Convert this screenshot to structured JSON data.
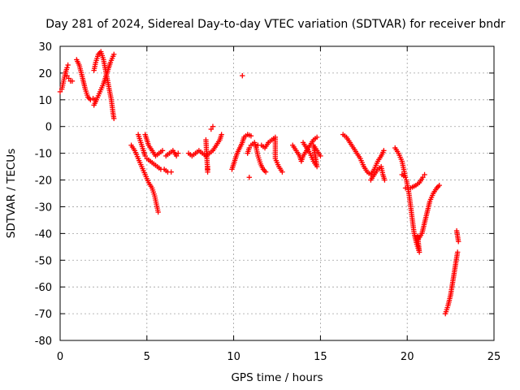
{
  "chart_data": {
    "type": "scatter",
    "title": "Day 281 of 2024, Sidereal Day-to-day VTEC variation (SDTVAR) for receiver bndr",
    "xlabel": "GPS time / hours",
    "ylabel": "SDTVAR / TECUs",
    "xlim": [
      0,
      25
    ],
    "ylim": [
      -80,
      30
    ],
    "xticks": [
      0,
      5,
      10,
      15,
      20,
      25
    ],
    "yticks": [
      -80,
      -70,
      -60,
      -50,
      -40,
      -30,
      -20,
      -10,
      0,
      10,
      20,
      30
    ],
    "grid": true,
    "marker": "plus",
    "color": "#ff0000",
    "segments": [
      [
        [
          0.0,
          13
        ],
        [
          0.1,
          14
        ],
        [
          0.2,
          17
        ],
        [
          0.3,
          20
        ],
        [
          0.4,
          22
        ],
        [
          0.45,
          23
        ]
      ],
      [
        [
          0.4,
          19
        ],
        [
          0.5,
          18
        ],
        [
          0.6,
          17
        ],
        [
          0.7,
          17
        ]
      ],
      [
        [
          0.95,
          25
        ],
        [
          1.1,
          23
        ],
        [
          1.3,
          18
        ],
        [
          1.45,
          14
        ],
        [
          1.6,
          11
        ],
        [
          1.75,
          10
        ],
        [
          1.9,
          10.5
        ],
        [
          2.0,
          10
        ]
      ],
      [
        [
          1.95,
          8
        ],
        [
          2.1,
          10
        ],
        [
          2.3,
          13
        ],
        [
          2.5,
          16
        ],
        [
          2.7,
          20
        ],
        [
          2.9,
          24
        ],
        [
          3.1,
          27
        ]
      ],
      [
        [
          1.95,
          21
        ],
        [
          2.05,
          24
        ],
        [
          2.2,
          27
        ],
        [
          2.35,
          28
        ],
        [
          2.5,
          25
        ],
        [
          2.65,
          20
        ],
        [
          2.8,
          15
        ],
        [
          2.95,
          10
        ],
        [
          3.05,
          5
        ],
        [
          3.1,
          3
        ]
      ],
      [
        [
          4.1,
          -7
        ],
        [
          4.3,
          -9
        ],
        [
          4.5,
          -12
        ],
        [
          4.7,
          -15
        ],
        [
          4.9,
          -18
        ],
        [
          5.1,
          -21
        ],
        [
          5.3,
          -23
        ],
        [
          5.45,
          -26
        ],
        [
          5.55,
          -29
        ],
        [
          5.65,
          -32
        ]
      ],
      [
        [
          4.5,
          -3
        ],
        [
          4.65,
          -6
        ],
        [
          4.8,
          -9
        ],
        [
          4.9,
          -11
        ],
        [
          5.0,
          -12
        ],
        [
          5.2,
          -13
        ],
        [
          5.4,
          -14
        ],
        [
          5.6,
          -15
        ],
        [
          5.8,
          -16
        ],
        [
          6.0,
          -16
        ],
        [
          6.2,
          -17
        ],
        [
          6.4,
          -17
        ]
      ],
      [
        [
          4.9,
          -3
        ],
        [
          5.0,
          -5
        ],
        [
          5.1,
          -7
        ],
        [
          5.3,
          -9
        ],
        [
          5.5,
          -11
        ],
        [
          5.7,
          -10
        ],
        [
          5.9,
          -9
        ]
      ],
      [
        [
          6.1,
          -11
        ],
        [
          6.3,
          -10
        ],
        [
          6.5,
          -9
        ],
        [
          6.7,
          -11
        ],
        [
          6.8,
          -10
        ]
      ],
      [
        [
          7.4,
          -10
        ],
        [
          7.6,
          -11
        ],
        [
          7.8,
          -10
        ],
        [
          8.0,
          -9
        ],
        [
          8.2,
          -10
        ],
        [
          8.4,
          -11
        ],
        [
          8.6,
          -10
        ],
        [
          8.8,
          -9
        ],
        [
          9.0,
          -7
        ],
        [
          9.2,
          -5
        ],
        [
          9.3,
          -3
        ]
      ],
      [
        [
          8.7,
          -1
        ],
        [
          8.8,
          0
        ],
        [
          8.5,
          -15
        ],
        [
          8.5,
          -17
        ],
        [
          8.4,
          -5
        ]
      ],
      [
        [
          9.9,
          -16
        ],
        [
          10.0,
          -14
        ],
        [
          10.1,
          -12
        ],
        [
          10.2,
          -10
        ],
        [
          10.35,
          -8
        ],
        [
          10.5,
          -6
        ],
        [
          10.6,
          -4
        ],
        [
          10.8,
          -3
        ],
        [
          11.0,
          -3.5
        ]
      ],
      [
        [
          10.8,
          -10
        ],
        [
          10.9,
          -8
        ],
        [
          11.0,
          -7
        ],
        [
          11.2,
          -6
        ],
        [
          11.3,
          -8
        ],
        [
          11.4,
          -11
        ],
        [
          11.55,
          -14
        ],
        [
          11.7,
          -16
        ],
        [
          11.85,
          -17
        ]
      ],
      [
        [
          11.4,
          -7
        ],
        [
          11.6,
          -7
        ],
        [
          11.8,
          -8
        ],
        [
          12.0,
          -6
        ],
        [
          12.2,
          -5
        ],
        [
          12.4,
          -4
        ],
        [
          12.4,
          -12
        ],
        [
          12.6,
          -15
        ],
        [
          12.8,
          -17
        ]
      ],
      [
        [
          10.5,
          19
        ],
        [
          10.9,
          -19
        ]
      ],
      [
        [
          13.4,
          -7
        ],
        [
          13.6,
          -9
        ],
        [
          13.8,
          -11
        ],
        [
          13.9,
          -13
        ],
        [
          14.0,
          -11
        ],
        [
          14.2,
          -9
        ],
        [
          14.4,
          -7
        ],
        [
          14.6,
          -5
        ],
        [
          14.8,
          -4
        ]
      ],
      [
        [
          14.0,
          -6
        ],
        [
          14.2,
          -8
        ],
        [
          14.4,
          -10
        ],
        [
          14.6,
          -13
        ],
        [
          14.8,
          -15
        ],
        [
          14.6,
          -7
        ],
        [
          14.8,
          -9
        ],
        [
          15.0,
          -11
        ]
      ],
      [
        [
          16.3,
          -3
        ],
        [
          16.5,
          -4
        ],
        [
          16.7,
          -6
        ],
        [
          16.9,
          -8
        ],
        [
          17.1,
          -10
        ],
        [
          17.3,
          -12
        ],
        [
          17.5,
          -15
        ],
        [
          17.7,
          -17
        ],
        [
          17.9,
          -18
        ],
        [
          18.1,
          -16
        ],
        [
          18.3,
          -13
        ],
        [
          18.5,
          -11
        ],
        [
          18.65,
          -9
        ]
      ],
      [
        [
          17.9,
          -20
        ],
        [
          18.1,
          -18
        ],
        [
          18.3,
          -16
        ],
        [
          18.5,
          -15
        ],
        [
          18.6,
          -18
        ],
        [
          18.7,
          -20
        ]
      ],
      [
        [
          19.3,
          -8
        ],
        [
          19.5,
          -10
        ],
        [
          19.7,
          -13
        ],
        [
          19.8,
          -16
        ],
        [
          19.9,
          -19
        ],
        [
          19.7,
          -18
        ]
      ],
      [
        [
          19.9,
          -23
        ],
        [
          20.2,
          -23
        ],
        [
          20.5,
          -22
        ],
        [
          20.7,
          -21
        ],
        [
          20.9,
          -19
        ],
        [
          21.0,
          -18
        ]
      ],
      [
        [
          19.95,
          -20
        ],
        [
          20.1,
          -25
        ],
        [
          20.2,
          -30
        ],
        [
          20.3,
          -35
        ],
        [
          20.4,
          -40
        ],
        [
          20.55,
          -44
        ],
        [
          20.7,
          -47
        ],
        [
          20.6,
          -41
        ]
      ],
      [
        [
          20.65,
          -42
        ],
        [
          20.85,
          -40
        ],
        [
          21.0,
          -36
        ],
        [
          21.15,
          -32
        ],
        [
          21.3,
          -28
        ],
        [
          21.5,
          -25
        ],
        [
          21.7,
          -23
        ],
        [
          21.85,
          -22
        ]
      ],
      [
        [
          22.2,
          -70
        ],
        [
          22.35,
          -67
        ],
        [
          22.5,
          -63
        ],
        [
          22.6,
          -59
        ],
        [
          22.7,
          -55
        ],
        [
          22.8,
          -51
        ],
        [
          22.9,
          -47
        ]
      ],
      [
        [
          22.85,
          -39
        ],
        [
          22.9,
          -41
        ],
        [
          22.95,
          -43
        ]
      ]
    ]
  }
}
